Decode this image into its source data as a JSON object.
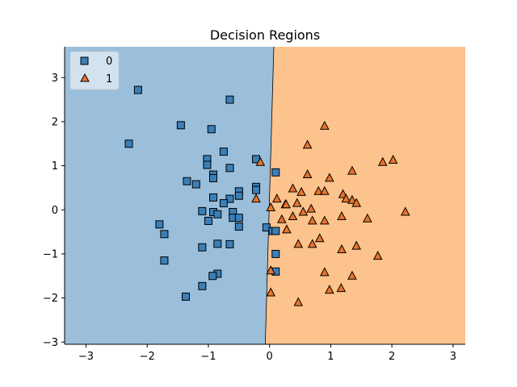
{
  "chart_data": {
    "type": "scatter",
    "title": "Decision Regions",
    "xlabel": "",
    "ylabel": "",
    "xlim": [
      -3.35,
      3.2
    ],
    "ylim": [
      -3.05,
      3.7
    ],
    "x_ticks": [
      -3,
      -2,
      -1,
      0,
      1,
      2,
      3
    ],
    "y_ticks": [
      -3,
      -2,
      -1,
      0,
      1,
      2,
      3
    ],
    "x_tick_labels": [
      "−3",
      "−2",
      "−1",
      "0",
      "1",
      "2",
      "3"
    ],
    "y_tick_labels": [
      "−3",
      "−2",
      "−1",
      "0",
      "1",
      "2",
      "3"
    ],
    "grid": false,
    "legend_position": "top-left",
    "regions": [
      {
        "class": "0",
        "color": "#9bbfdb"
      },
      {
        "class": "1",
        "color": "#fdc38d"
      }
    ],
    "decision_boundary": [
      [
        0.07,
        3.7
      ],
      [
        -0.07,
        -3.05
      ]
    ],
    "series": [
      {
        "name": "0",
        "marker": "square",
        "color": "#3a7fb8",
        "points": [
          [
            -2.15,
            2.72
          ],
          [
            -2.3,
            1.5
          ],
          [
            -1.45,
            1.92
          ],
          [
            -0.65,
            2.5
          ],
          [
            -0.95,
            1.83
          ],
          [
            -1.35,
            0.65
          ],
          [
            -1.2,
            0.58
          ],
          [
            -1.02,
            1.15
          ],
          [
            -1.02,
            1.02
          ],
          [
            -0.75,
            1.32
          ],
          [
            -0.65,
            0.95
          ],
          [
            -0.92,
            0.8
          ],
          [
            -0.92,
            0.72
          ],
          [
            -0.5,
            0.42
          ],
          [
            -0.5,
            0.32
          ],
          [
            -0.92,
            0.28
          ],
          [
            -0.65,
            0.25
          ],
          [
            -0.75,
            0.15
          ],
          [
            -0.92,
            -0.05
          ],
          [
            -1.1,
            -0.03
          ],
          [
            -0.85,
            -0.1
          ],
          [
            -1.0,
            -0.25
          ],
          [
            -0.6,
            -0.05
          ],
          [
            -0.6,
            -0.18
          ],
          [
            -0.5,
            -0.18
          ],
          [
            -0.5,
            -0.38
          ],
          [
            -0.22,
            1.15
          ],
          [
            -0.22,
            0.52
          ],
          [
            -0.22,
            0.45
          ],
          [
            -1.8,
            -0.33
          ],
          [
            -1.72,
            -0.55
          ],
          [
            -1.72,
            -1.15
          ],
          [
            -1.1,
            -0.85
          ],
          [
            -0.85,
            -0.77
          ],
          [
            -0.65,
            -0.78
          ],
          [
            -0.85,
            -1.45
          ],
          [
            -0.93,
            -1.5
          ],
          [
            -1.1,
            -1.73
          ],
          [
            -1.37,
            -1.97
          ],
          [
            -0.05,
            -0.4
          ],
          [
            0.05,
            -0.48
          ],
          [
            0.1,
            -0.48
          ],
          [
            0.1,
            -1.0
          ],
          [
            0.1,
            -1.4
          ],
          [
            0.1,
            0.85
          ]
        ]
      },
      {
        "name": "1",
        "marker": "triangle",
        "color": "#e8742a",
        "points": [
          [
            0.9,
            1.9
          ],
          [
            0.62,
            1.47
          ],
          [
            2.02,
            1.13
          ],
          [
            1.85,
            1.08
          ],
          [
            1.35,
            0.88
          ],
          [
            0.62,
            0.8
          ],
          [
            0.98,
            0.72
          ],
          [
            0.38,
            0.48
          ],
          [
            0.52,
            0.4
          ],
          [
            0.8,
            0.42
          ],
          [
            0.9,
            0.42
          ],
          [
            1.2,
            0.35
          ],
          [
            1.25,
            0.25
          ],
          [
            1.35,
            0.22
          ],
          [
            1.42,
            0.15
          ],
          [
            0.12,
            0.25
          ],
          [
            0.26,
            0.12
          ],
          [
            0.27,
            0.12
          ],
          [
            0.45,
            0.15
          ],
          [
            0.68,
            0.02
          ],
          [
            0.02,
            0.05
          ],
          [
            0.55,
            -0.05
          ],
          [
            2.22,
            -0.05
          ],
          [
            0.2,
            -0.22
          ],
          [
            0.38,
            -0.15
          ],
          [
            0.7,
            -0.25
          ],
          [
            0.9,
            -0.25
          ],
          [
            1.18,
            -0.15
          ],
          [
            1.6,
            -0.2
          ],
          [
            0.28,
            -0.45
          ],
          [
            0.82,
            -0.65
          ],
          [
            0.47,
            -0.78
          ],
          [
            0.7,
            -0.78
          ],
          [
            1.18,
            -0.9
          ],
          [
            1.42,
            -0.82
          ],
          [
            1.77,
            -1.05
          ],
          [
            0.02,
            -1.38
          ],
          [
            0.9,
            -1.42
          ],
          [
            1.35,
            -1.5
          ],
          [
            0.98,
            -1.82
          ],
          [
            1.17,
            -1.78
          ],
          [
            0.02,
            -1.88
          ],
          [
            0.47,
            -2.1
          ],
          [
            -0.15,
            1.08
          ],
          [
            -0.22,
            0.25
          ]
        ]
      }
    ]
  },
  "legend": {
    "items": [
      {
        "label": "0"
      },
      {
        "label": "1"
      }
    ]
  }
}
